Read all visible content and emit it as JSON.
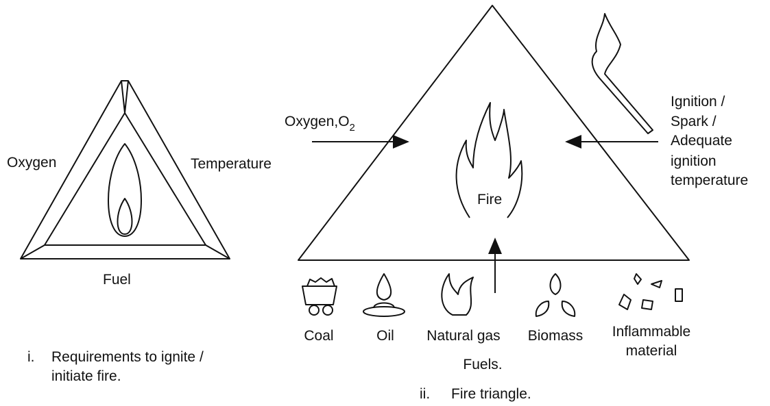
{
  "left": {
    "labels": {
      "oxygen": "Oxygen",
      "temperature": "Temperature",
      "fuel": "Fuel"
    },
    "caption": {
      "number": "i.",
      "lines": [
        "Requirements to ignite /",
        "initiate fire."
      ]
    }
  },
  "right": {
    "oxygen": {
      "text": "Oxygen,O",
      "subscript": "2"
    },
    "center": "Fire",
    "ignition": [
      "Ignition /",
      "Spark /",
      "Adequate",
      "ignition",
      "temperature"
    ],
    "fuels": {
      "items": [
        [
          "Coal"
        ],
        [
          "Oil"
        ],
        [
          "Natural gas"
        ],
        [
          "Biomass"
        ],
        [
          "Inflammable",
          "material"
        ]
      ],
      "title": "Fuels."
    },
    "caption": {
      "number": "ii.",
      "text": "Fire triangle."
    }
  }
}
